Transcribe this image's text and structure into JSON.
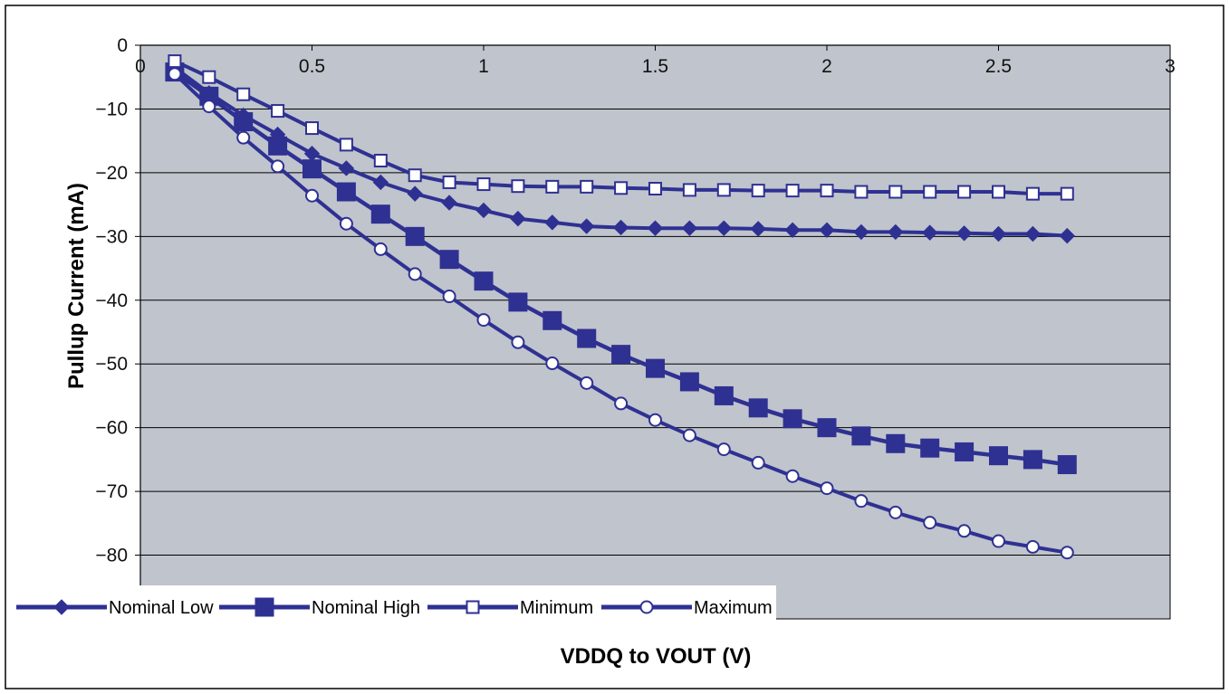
{
  "chart_data": {
    "type": "line",
    "title": "",
    "xlabel": "VDDQ to VOUT (V)",
    "ylabel": "Pullup Current (mA)",
    "xlim": [
      0,
      3
    ],
    "ylim": [
      -90,
      0
    ],
    "xticks": [
      "0",
      "0.5",
      "1",
      "1.5",
      "2",
      "2.5",
      "3"
    ],
    "yticks": [
      "0",
      "−10",
      "−20",
      "−30",
      "−40",
      "−50",
      "−60",
      "−70",
      "−80"
    ],
    "grid": "horizontal",
    "legend_position": "bottom",
    "colors": {
      "line": "#2e3192",
      "plot_background": "#c0c4cc",
      "gridline": "#000000"
    },
    "x": [
      0.1,
      0.2,
      0.3,
      0.4,
      0.5,
      0.6,
      0.7,
      0.8,
      0.9,
      1.0,
      1.1,
      1.2,
      1.3,
      1.4,
      1.5,
      1.6,
      1.7,
      1.8,
      1.9,
      2.0,
      2.1,
      2.2,
      2.3,
      2.4,
      2.5,
      2.6,
      2.7
    ],
    "series": [
      {
        "name": "Nominal Low",
        "marker": "diamond",
        "values": [
          -3.5,
          -7.5,
          -11,
          -14,
          -17,
          -19.3,
          -21.5,
          -23.3,
          -24.7,
          -25.9,
          -27.2,
          -27.8,
          -28.4,
          -28.6,
          -28.7,
          -28.7,
          -28.7,
          -28.8,
          -29.0,
          -29.0,
          -29.3,
          -29.3,
          -29.4,
          -29.5,
          -29.6,
          -29.6,
          -29.9
        ]
      },
      {
        "name": "Nominal High",
        "marker": "filled-square",
        "values": [
          -4.2,
          -8,
          -12,
          -15.8,
          -19.4,
          -23.0,
          -26.5,
          -30.0,
          -33.6,
          -37.0,
          -40.3,
          -43.2,
          -46.0,
          -48.5,
          -50.7,
          -52.8,
          -55.0,
          -56.9,
          -58.6,
          -60.0,
          -61.3,
          -62.5,
          -63.2,
          -63.8,
          -64.4,
          -65.0,
          -65.8
        ]
      },
      {
        "name": "Minimum",
        "marker": "open-square",
        "values": [
          -2.5,
          -5.0,
          -7.7,
          -10.3,
          -13.0,
          -15.6,
          -18.1,
          -20.4,
          -21.5,
          -21.8,
          -22.1,
          -22.2,
          -22.2,
          -22.4,
          -22.5,
          -22.7,
          -22.7,
          -22.8,
          -22.8,
          -22.8,
          -23.0,
          -23.0,
          -23.0,
          -23.0,
          -23.0,
          -23.3,
          -23.3
        ]
      },
      {
        "name": "Maximum",
        "marker": "open-circle",
        "values": [
          -4.5,
          -9.6,
          -14.5,
          -19.0,
          -23.6,
          -28.0,
          -32.0,
          -35.9,
          -39.4,
          -43.1,
          -46.6,
          -49.9,
          -53.0,
          -56.2,
          -58.8,
          -61.2,
          -63.4,
          -65.5,
          -67.6,
          -69.5,
          -71.5,
          -73.3,
          -74.9,
          -76.2,
          -77.8,
          -78.7,
          -79.6
        ]
      }
    ]
  }
}
